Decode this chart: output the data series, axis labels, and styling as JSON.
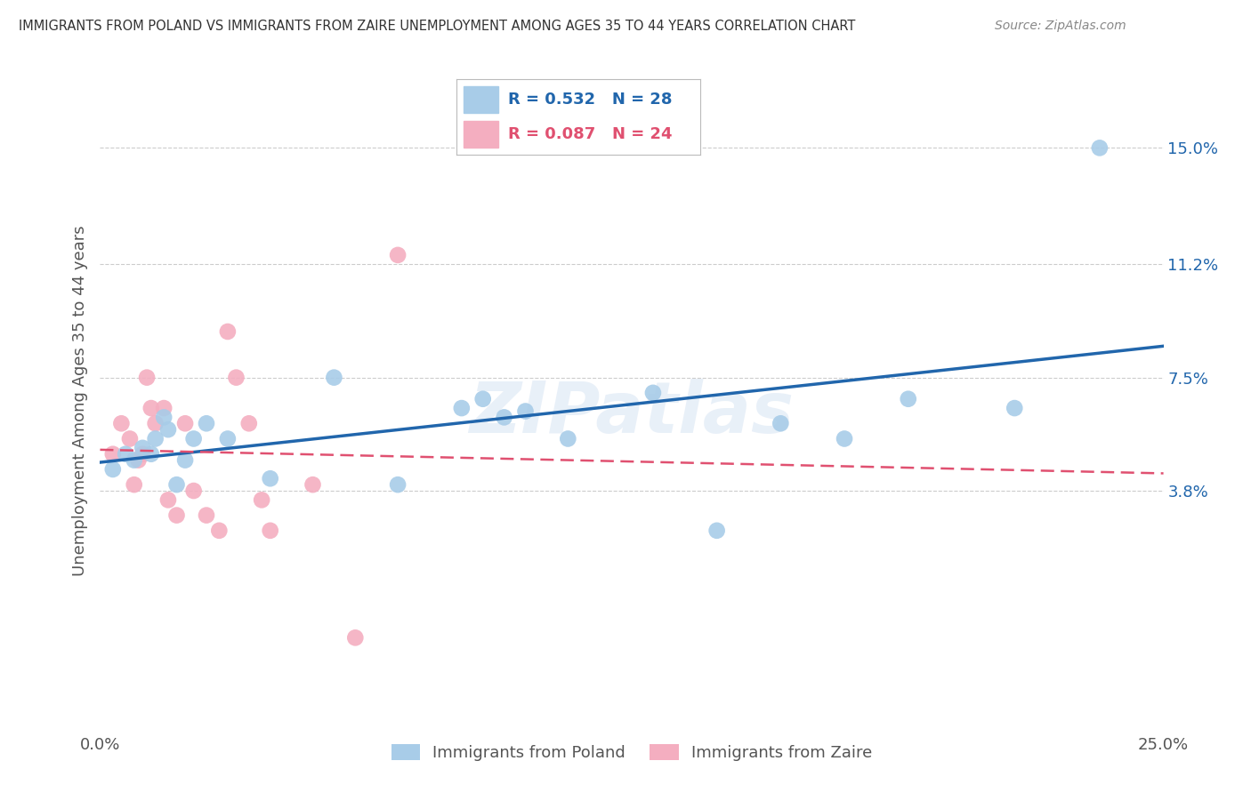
{
  "title": "IMMIGRANTS FROM POLAND VS IMMIGRANTS FROM ZAIRE UNEMPLOYMENT AMONG AGES 35 TO 44 YEARS CORRELATION CHART",
  "source": "Source: ZipAtlas.com",
  "ylabel": "Unemployment Among Ages 35 to 44 years",
  "xlim": [
    0.0,
    0.25
  ],
  "ylim": [
    -0.04,
    0.175
  ],
  "ytick_labels_right": [
    "15.0%",
    "11.2%",
    "7.5%",
    "3.8%"
  ],
  "ytick_values_right": [
    0.15,
    0.112,
    0.075,
    0.038
  ],
  "poland_R": 0.532,
  "poland_N": 28,
  "zaire_R": 0.087,
  "zaire_N": 24,
  "poland_color": "#a8cce8",
  "zaire_color": "#f4aec0",
  "poland_line_color": "#2166ac",
  "zaire_line_color": "#e05070",
  "legend_label_poland": "Immigrants from Poland",
  "legend_label_zaire": "Immigrants from Zaire",
  "watermark": "ZIPatlas",
  "background_color": "#ffffff",
  "grid_color": "#cccccc",
  "poland_x": [
    0.003,
    0.006,
    0.008,
    0.01,
    0.012,
    0.013,
    0.015,
    0.016,
    0.018,
    0.02,
    0.022,
    0.025,
    0.03,
    0.04,
    0.055,
    0.07,
    0.085,
    0.09,
    0.095,
    0.1,
    0.11,
    0.13,
    0.145,
    0.16,
    0.175,
    0.19,
    0.215,
    0.235
  ],
  "poland_y": [
    0.045,
    0.05,
    0.048,
    0.052,
    0.05,
    0.055,
    0.062,
    0.058,
    0.04,
    0.048,
    0.055,
    0.06,
    0.055,
    0.042,
    0.075,
    0.04,
    0.065,
    0.068,
    0.062,
    0.064,
    0.055,
    0.07,
    0.025,
    0.06,
    0.055,
    0.068,
    0.065,
    0.15
  ],
  "zaire_x": [
    0.003,
    0.005,
    0.007,
    0.008,
    0.009,
    0.01,
    0.011,
    0.012,
    0.013,
    0.015,
    0.016,
    0.018,
    0.02,
    0.022,
    0.025,
    0.028,
    0.03,
    0.032,
    0.035,
    0.038,
    0.04,
    0.05,
    0.06,
    0.07
  ],
  "zaire_y": [
    0.05,
    0.06,
    0.055,
    0.04,
    0.048,
    0.05,
    0.075,
    0.065,
    0.06,
    0.065,
    0.035,
    0.03,
    0.06,
    0.038,
    0.03,
    0.025,
    0.09,
    0.075,
    0.06,
    0.035,
    0.025,
    0.04,
    -0.01,
    0.115
  ]
}
